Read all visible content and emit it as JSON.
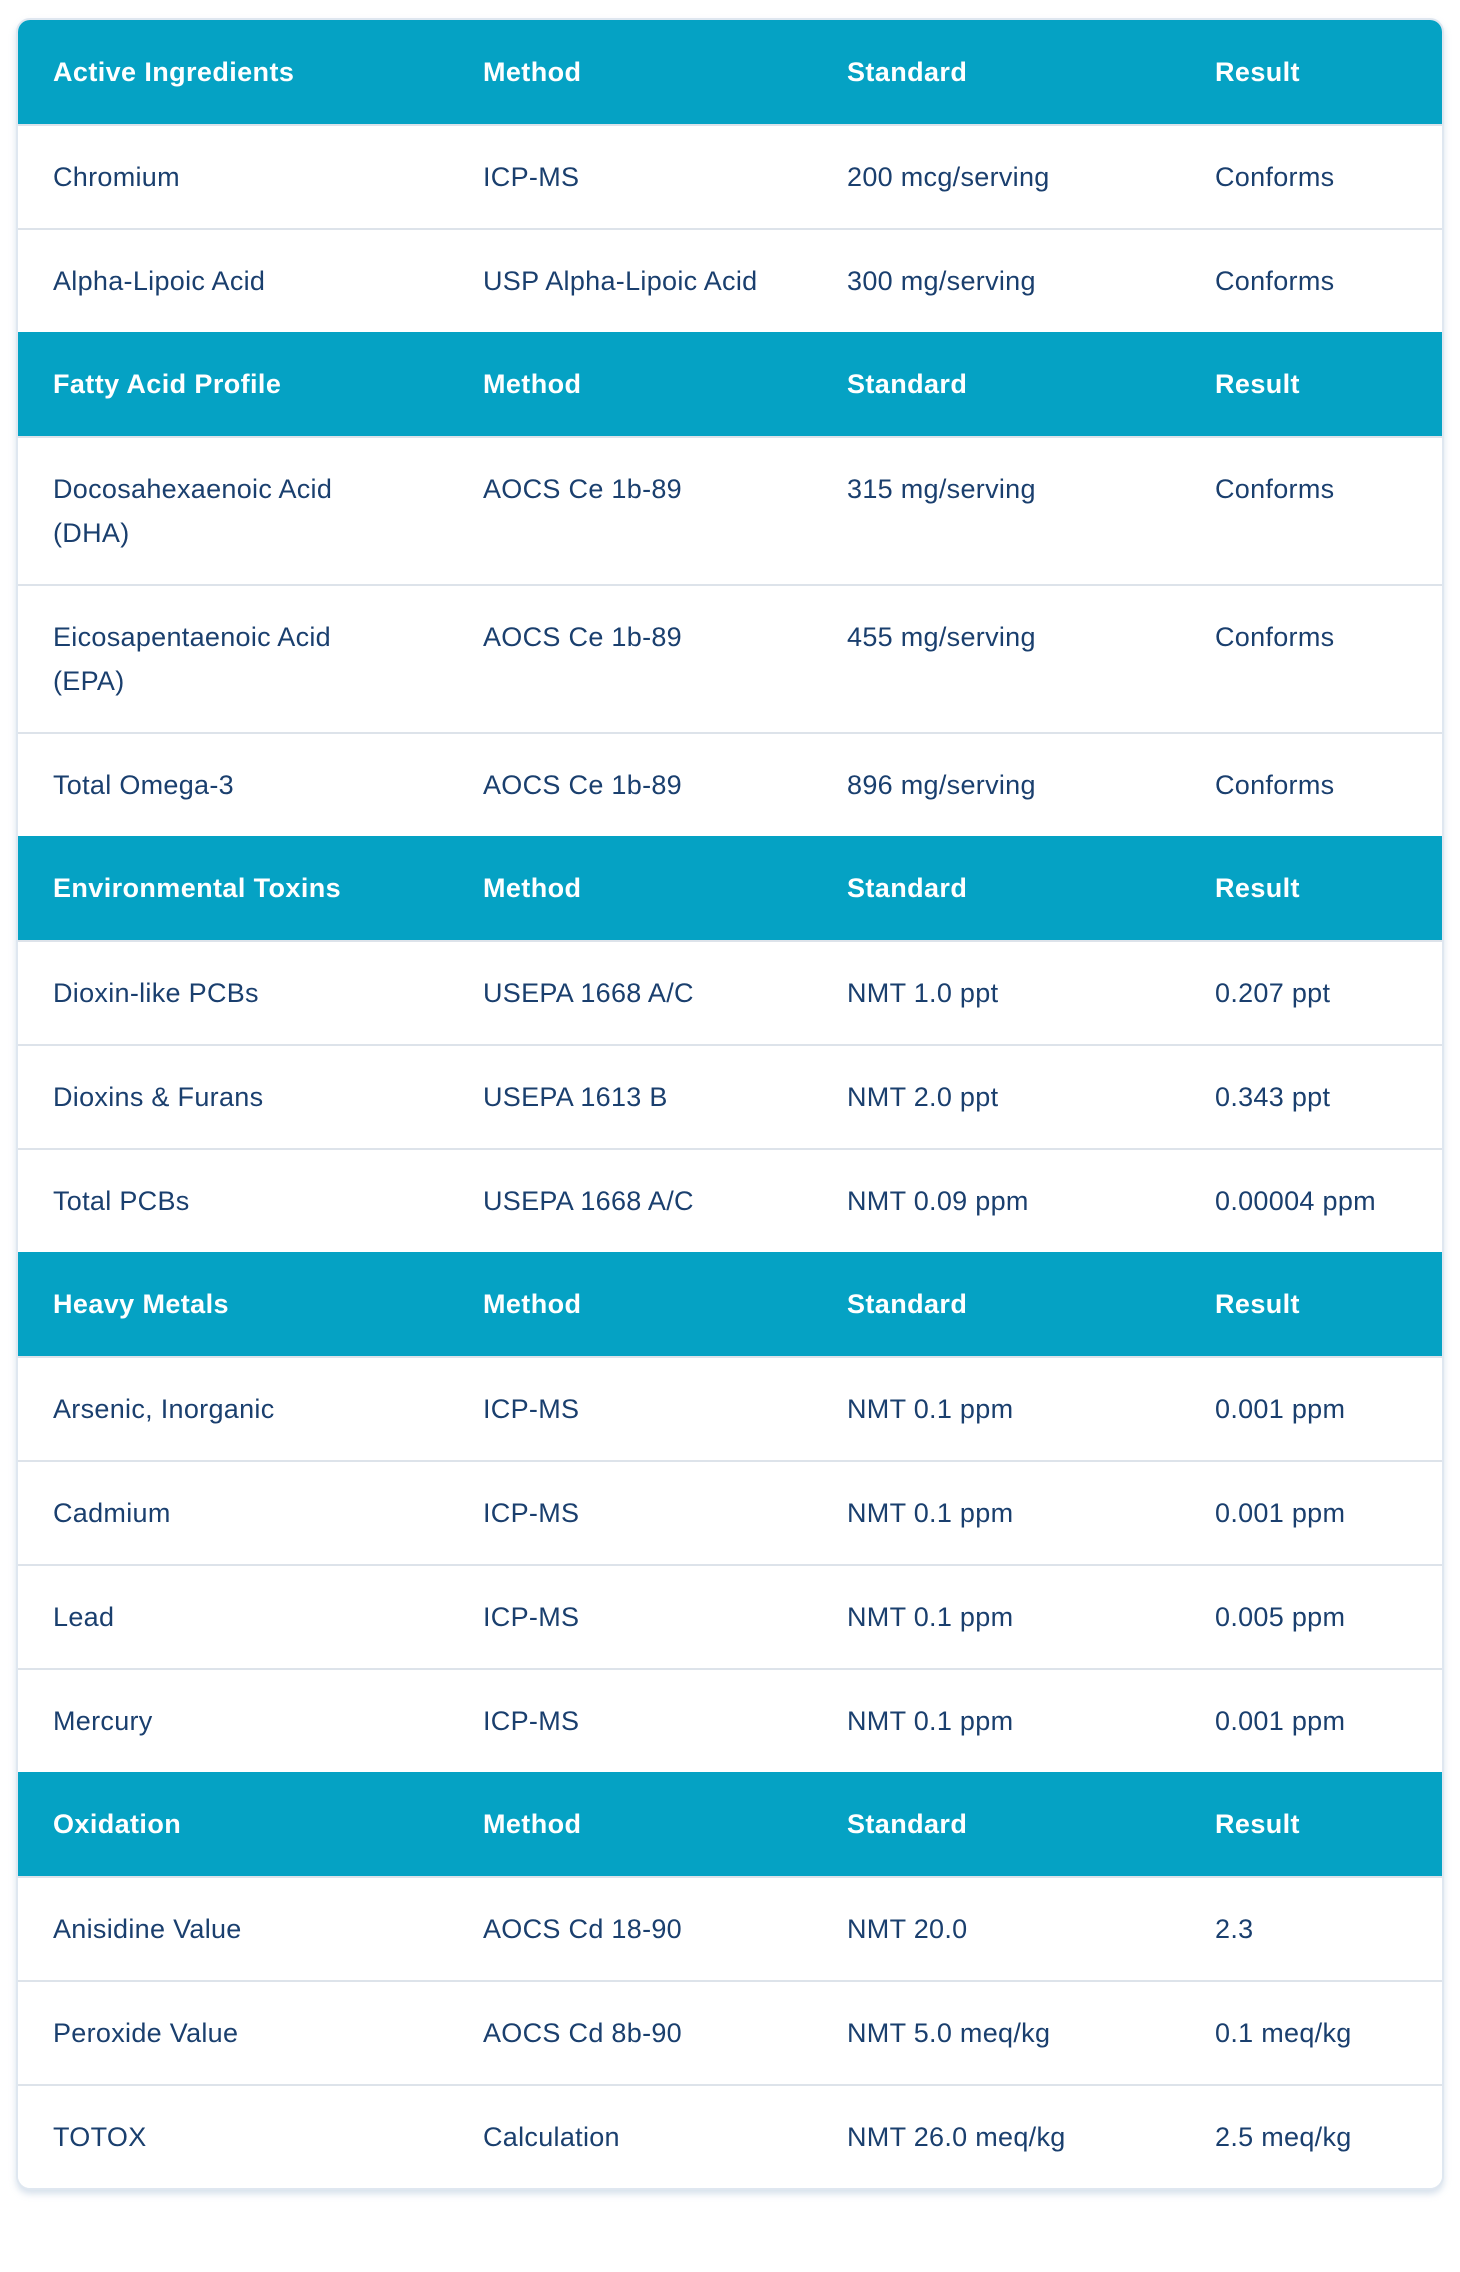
{
  "table": {
    "columns": [
      "Method",
      "Standard",
      "Result"
    ],
    "sections": [
      {
        "title": "Active Ingredients",
        "rows": [
          {
            "name": "Chromium",
            "method": "ICP-MS",
            "standard": "200 mcg/serving",
            "result": "Conforms"
          },
          {
            "name": "Alpha-Lipoic Acid",
            "method": "USP Alpha-Lipoic Acid",
            "standard": "300 mg/serving",
            "result": "Conforms"
          }
        ]
      },
      {
        "title": "Fatty Acid Profile",
        "rows": [
          {
            "name": "Docosahexaenoic Acid (DHA)",
            "method": "AOCS Ce 1b-89",
            "standard": "315 mg/serving",
            "result": "Conforms"
          },
          {
            "name": "Eicosapentaenoic Acid (EPA)",
            "method": "AOCS Ce 1b-89",
            "standard": "455 mg/serving",
            "result": "Conforms"
          },
          {
            "name": "Total Omega-3",
            "method": "AOCS Ce 1b-89",
            "standard": "896 mg/serving",
            "result": "Conforms"
          }
        ]
      },
      {
        "title": "Environmental Toxins",
        "rows": [
          {
            "name": "Dioxin-like PCBs",
            "method": "USEPA 1668 A/C",
            "standard": "NMT 1.0 ppt",
            "result": "0.207 ppt"
          },
          {
            "name": "Dioxins & Furans",
            "method": "USEPA 1613 B",
            "standard": "NMT 2.0 ppt",
            "result": "0.343 ppt"
          },
          {
            "name": "Total PCBs",
            "method": "USEPA 1668 A/C",
            "standard": "NMT 0.09 ppm",
            "result": "0.00004 ppm"
          }
        ]
      },
      {
        "title": "Heavy Metals",
        "rows": [
          {
            "name": "Arsenic, Inorganic",
            "method": "ICP-MS",
            "standard": "NMT 0.1 ppm",
            "result": "0.001 ppm"
          },
          {
            "name": "Cadmium",
            "method": "ICP-MS",
            "standard": "NMT 0.1 ppm",
            "result": "0.001 ppm"
          },
          {
            "name": "Lead",
            "method": "ICP-MS",
            "standard": "NMT 0.1 ppm",
            "result": "0.005 ppm"
          },
          {
            "name": "Mercury",
            "method": "ICP-MS",
            "standard": "NMT 0.1 ppm",
            "result": "0.001 ppm"
          }
        ]
      },
      {
        "title": "Oxidation",
        "rows": [
          {
            "name": "Anisidine Value",
            "method": "AOCS Cd 18-90",
            "standard": "NMT 20.0",
            "result": "2.3"
          },
          {
            "name": "Peroxide Value",
            "method": "AOCS Cd 8b-90",
            "standard": "NMT 5.0 meq/kg",
            "result": "0.1 meq/kg"
          },
          {
            "name": "TOTOX",
            "method": "Calculation",
            "standard": "NMT 26.0 meq/kg",
            "result": "2.5 meq/kg"
          }
        ]
      }
    ],
    "colors": {
      "header_bg": "#05a2c4",
      "header_text": "#ffffff",
      "body_text": "#1a3f6e",
      "divider": "#dde3ea",
      "card_border": "#dfe7f0"
    }
  }
}
